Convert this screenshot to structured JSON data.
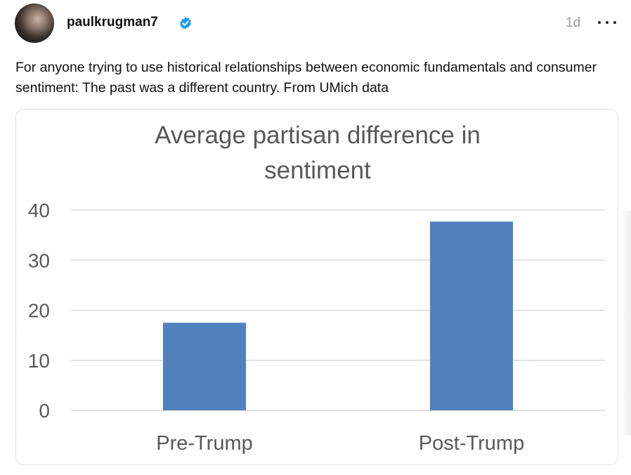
{
  "post": {
    "username": "paulkrugman7",
    "timestamp": "1d",
    "text": "For anyone trying to use historical relationships between economic fundamentals and consumer sentiment: The past was a different country. From UMich data"
  },
  "colors": {
    "bar": "#4f81bd",
    "verified": "#1d9bf0",
    "grid": "#d9d9d9",
    "axis_text": "#595959",
    "title_text": "#595959"
  },
  "icons": {
    "verified": "verified-badge-icon",
    "more": "more-options-icon"
  },
  "chart_data": {
    "type": "bar",
    "title": "Average partisan difference in sentiment",
    "title_lines": [
      "Average partisan difference in",
      "sentiment"
    ],
    "categories": [
      "Pre-Trump",
      "Post-Trump"
    ],
    "values": [
      17.5,
      37.7
    ],
    "ylim": [
      0,
      40
    ],
    "yticks": [
      0,
      10,
      20,
      30,
      40
    ],
    "xlabel": "",
    "ylabel": "",
    "grid": true
  }
}
